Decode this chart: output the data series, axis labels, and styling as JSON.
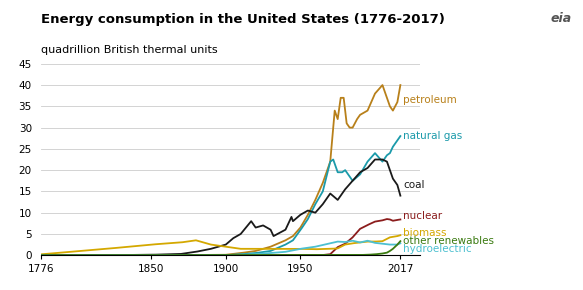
{
  "title": "Energy consumption in the United States (1776-2017)",
  "subtitle": "quadrillion British thermal units",
  "title_fontsize": 9.5,
  "subtitle_fontsize": 8,
  "xlim": [
    1776,
    2030
  ],
  "ylim": [
    0,
    45
  ],
  "yticks": [
    0,
    5,
    10,
    15,
    20,
    25,
    30,
    35,
    40,
    45
  ],
  "ytick_labels": [
    "0",
    "5",
    "10",
    "15",
    "20",
    "25",
    "30",
    "35",
    "40",
    "45"
  ],
  "xticks": [
    1776,
    1850,
    1900,
    1950,
    2017
  ],
  "colors": {
    "petroleum": "#b8801a",
    "natural_gas": "#1b9aaa",
    "coal": "#1a1a1a",
    "nuclear": "#8b1c1c",
    "biomass": "#d4a800",
    "other_renewables": "#3a7a10",
    "hydroelectric": "#4dc0d0"
  },
  "background_color": "#ffffff",
  "grid_color": "#cccccc",
  "lw": 1.3,
  "annot_fontsize": 7.5
}
